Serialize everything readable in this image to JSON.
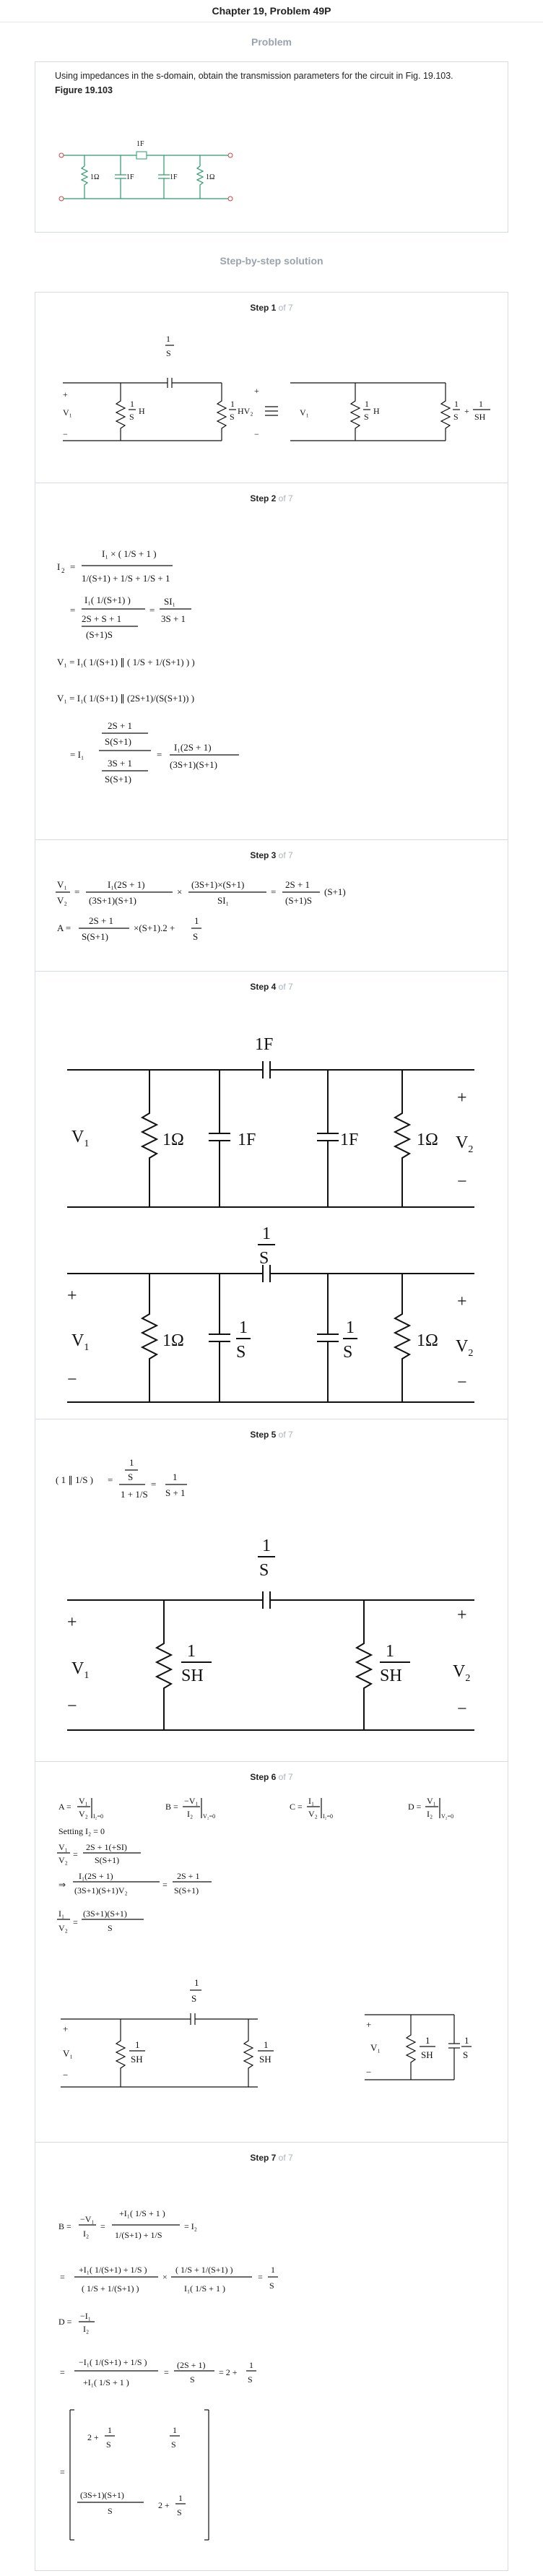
{
  "header": {
    "title": "Chapter 19, Problem 49P"
  },
  "problem": {
    "label": "Problem",
    "text": "Using impedances in the s-domain, obtain the transmission parameters for the circuit in Fig. 19.103.",
    "figure_title": "Figure 19.103",
    "figure": {
      "r1": "1Ω",
      "c1": "1F",
      "ctop": "1F",
      "c2": "1F",
      "r2": "1Ω"
    }
  },
  "solution_label": "Step-by-step solution",
  "steps": [
    {
      "label": "Step 1",
      "of": "of 7"
    },
    {
      "label": "Step 2",
      "of": "of 7"
    },
    {
      "label": "Step 3",
      "of": "of 7"
    },
    {
      "label": "Step 4",
      "of": "of 7"
    },
    {
      "label": "Step 5",
      "of": "of 7"
    },
    {
      "label": "Step 6",
      "of": "of 7"
    },
    {
      "label": "Step 7",
      "of": "of 7"
    }
  ],
  "step2": {
    "line1": "I₂ = I₁ × (1/S + 1) / (1/(S+1) + 1/S + 1/S + 1)",
    "line2": "= I₁(1/(S+1)) / ((2S+S+1)/((S+1)S)) = SI₁/(3S+1)",
    "line3": "V₁ = I₁(1/(S+1) ∥ (1/S + 1/(S+1)))",
    "line4": "V₁ = I₁(1/(S+1) ∥ (2S+1)/(S(S+1)))",
    "line5": "= I₁ (2S+1)/(S(S+1)) / ((3S+1)/(S(S+1))) = I₁(2S+1)/((3S+1)(S+1))"
  },
  "step3": {
    "line1": "V₁/V₂ = I₁(2S+1)/((3S+1)(S+1)) × (3S+1)×(S+1)/(SI₁) = (2S+1)/((S+1)S) (S+1)",
    "line2": "A = (2S+1)/(S(S+1)) × (S+1).2 + 1/S"
  },
  "step4": {
    "c_top": "1F",
    "r1": "1Ω",
    "c1": "1F",
    "c2": "1F",
    "r2": "1Ω",
    "v1": "V",
    "v2": "V",
    "sub1": "1",
    "sub2": "2",
    "plus": "+",
    "minus": "−",
    "s_top_num": "1",
    "s_top_den": "S",
    "s_c1_num": "1",
    "s_c1_den": "S",
    "s_c2_num": "1",
    "s_c2_den": "S"
  },
  "step5": {
    "eq": "(1 ∥ 1/S) = (1/S)/(1 + 1/S) = 1/(S+1)",
    "top_num": "1",
    "top_den": "S",
    "l1_num": "1",
    "l1_den": "SH",
    "l2_num": "1",
    "l2_den": "SH"
  },
  "step6": {
    "a": "A = V₁/V₂ |I₂=0",
    "b": "B = −V₁/I₂ |V₂=0",
    "c": "C = I₁/V₂ |I₂=0",
    "d": "D = V₁/I₂ |V₂=0",
    "setting": "Setting I₂ = 0",
    "l1": "V₁/V₂ = (2S+1(+SI))/(S(S+1))",
    "l2": "⇒ I₁(2S+1)/((3S+1)(S+1)V₂) = (2S+1)/(S(S+1))",
    "l3": "I₁/V₂ = (3S+1)(S+1)/S"
  },
  "step7": {
    "b": "B = −V₁/I₂ = +I₁(1/S + 1)/(1/(S+1) + 1/S) = I₂",
    "b2": "= +I₁(1/(S+1) + 1/S) × (1/S + 1/(S+1)) / (I₁(1/S + 1)) = 1/S",
    "d": "D = −I₁/I₂",
    "d2": "= −I₁(1/(S+1) + 1/S) / (+I₁(1/S + 1)) = (2S+1)/S = 2 + 1/S",
    "m11": "2 + 1/S",
    "m12": "1/S",
    "m21": "(3S+1)(S+1)/S",
    "m22": "2 + 1/S"
  }
}
